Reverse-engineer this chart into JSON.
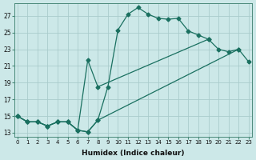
{
  "xlabel": "Humidex (Indice chaleur)",
  "bg_color": "#cce8e8",
  "grid_color": "#aacccc",
  "line_color": "#1a7060",
  "xlim": [
    -0.3,
    23.3
  ],
  "ylim": [
    12.5,
    28.5
  ],
  "xticks": [
    0,
    1,
    2,
    3,
    4,
    5,
    6,
    7,
    8,
    9,
    10,
    11,
    12,
    13,
    14,
    15,
    16,
    17,
    18,
    19,
    20,
    21,
    22,
    23
  ],
  "yticks": [
    13,
    15,
    17,
    19,
    21,
    23,
    25,
    27
  ],
  "line1_x": [
    0,
    1,
    2,
    3,
    4,
    5,
    6,
    7,
    8,
    9,
    10,
    11,
    12,
    13,
    14,
    15,
    16,
    17,
    18,
    19
  ],
  "line1_y": [
    15,
    14.3,
    14.3,
    13.8,
    14.3,
    14.3,
    13.3,
    13.1,
    14.5,
    18.5,
    25.3,
    27.2,
    28.0,
    27.2,
    26.7,
    26.6,
    26.7,
    25.2,
    24.7,
    24.2
  ],
  "line2_x": [
    0,
    1,
    2,
    3,
    4,
    5,
    6,
    7,
    8,
    19,
    20,
    21,
    22
  ],
  "line2_y": [
    15,
    14.3,
    14.3,
    13.8,
    14.3,
    14.3,
    13.3,
    21.7,
    18.5,
    24.2,
    23.0,
    22.7,
    23.0
  ],
  "line3_x": [
    0,
    1,
    2,
    3,
    4,
    5,
    6,
    7,
    8,
    22,
    23
  ],
  "line3_y": [
    15,
    14.3,
    14.3,
    13.8,
    14.3,
    14.3,
    13.3,
    13.1,
    14.5,
    23.0,
    21.5
  ]
}
